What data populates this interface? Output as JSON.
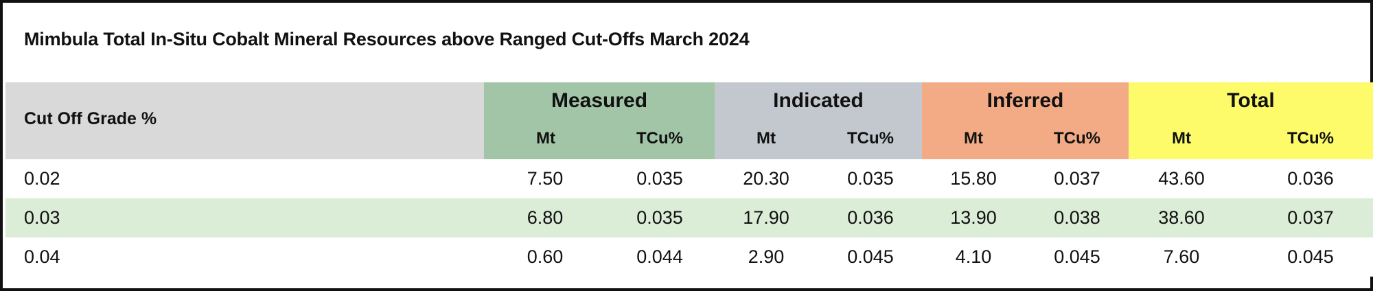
{
  "title": "Mimbula Total In-Situ Cobalt Mineral Resources above Ranged Cut-Offs March 2024",
  "header": {
    "cut_off_label": "Cut Off Grade %",
    "groups": [
      {
        "label": "Measured",
        "color": "#a3c5a7",
        "sub": [
          "Mt",
          "TCu%"
        ]
      },
      {
        "label": "Indicated",
        "color": "#c3c8cf",
        "sub": [
          "Mt",
          "TCu%"
        ]
      },
      {
        "label": "Inferred",
        "color": "#f2ab85",
        "sub": [
          "Mt",
          "TCu%"
        ]
      },
      {
        "label": "Total",
        "color": "#fdfb6a",
        "sub": [
          "Mt",
          "TCu%"
        ]
      }
    ]
  },
  "rows": [
    {
      "grade": "0.02",
      "values": [
        "7.50",
        "0.035",
        "20.30",
        "0.035",
        "15.80",
        "0.037",
        "43.60",
        "0.036"
      ]
    },
    {
      "grade": "0.03",
      "values": [
        "6.80",
        "0.035",
        "17.90",
        "0.036",
        "13.90",
        "0.038",
        "38.60",
        "0.037"
      ]
    },
    {
      "grade": "0.04",
      "values": [
        "0.60",
        "0.044",
        "2.90",
        "0.045",
        "4.10",
        "0.045",
        "7.60",
        "0.045"
      ]
    }
  ],
  "colors": {
    "header_grey": "#d9d9d9",
    "alt_row": "#dbecd7"
  }
}
